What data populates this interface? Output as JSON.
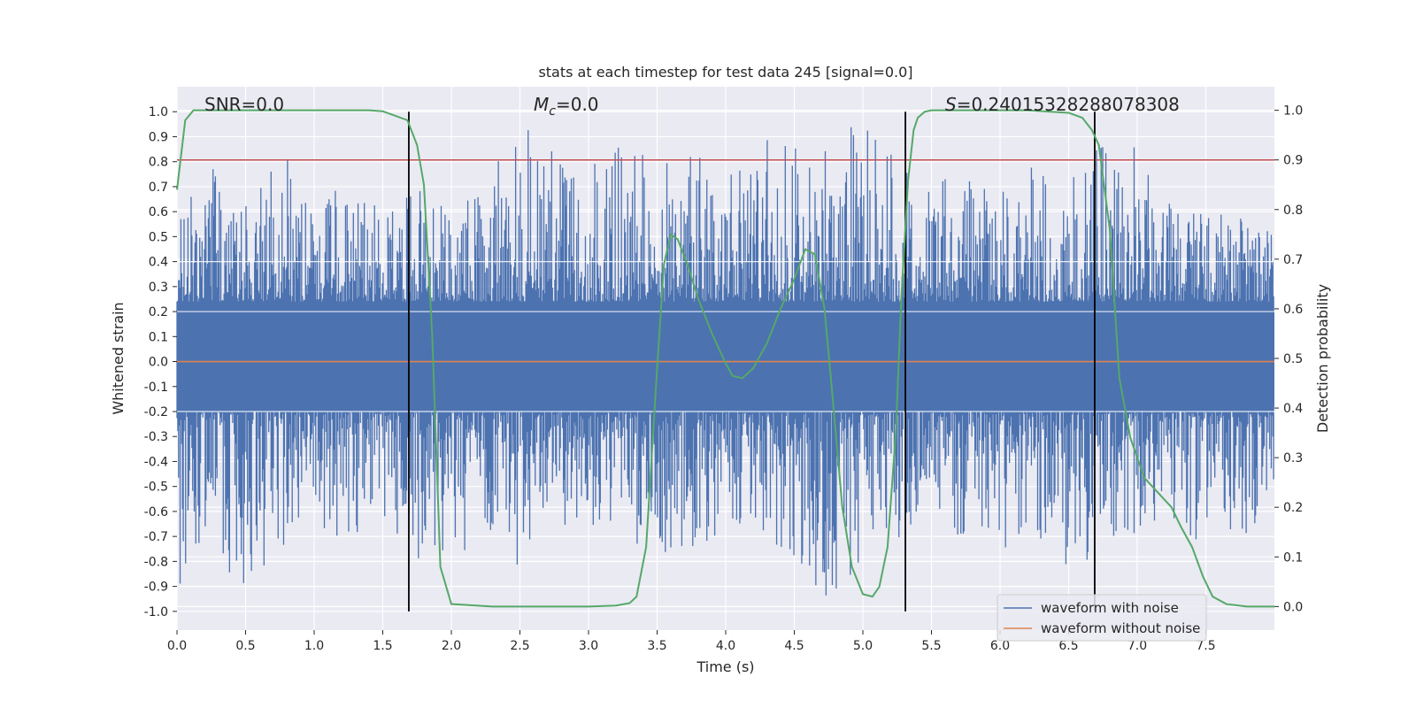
{
  "chart_data": {
    "type": "line",
    "title": "stats at each timestep for test data 245 [signal=0.0]",
    "xlabel": "Time (s)",
    "ylabel": "Whitened strain",
    "y2label": "Detection probability",
    "xlim": [
      0.0,
      8.0
    ],
    "ylim": [
      -1.075,
      1.1
    ],
    "y2lim": [
      -0.0475,
      1.0475
    ],
    "grid": true,
    "x_ticks": [
      "0.0",
      "0.5",
      "1.0",
      "1.5",
      "2.0",
      "2.5",
      "3.0",
      "3.5",
      "4.0",
      "4.5",
      "5.0",
      "5.5",
      "6.0",
      "6.5",
      "7.0",
      "7.5"
    ],
    "y_ticks": [
      "1.0",
      "0.9",
      "0.8",
      "0.7",
      "0.6",
      "0.5",
      "0.4",
      "0.3",
      "0.2",
      "0.1",
      "0.0",
      "-0.1",
      "-0.2",
      "-0.3",
      "-0.4",
      "-0.5",
      "-0.6",
      "-0.7",
      "-0.8",
      "-0.9",
      "-1.0"
    ],
    "y2_ticks": [
      "1.0",
      "0.9",
      "0.8",
      "0.7",
      "0.6",
      "0.5",
      "0.4",
      "0.3",
      "0.2",
      "0.1",
      "0.0"
    ],
    "annotations": {
      "snr": "SNR=0.0",
      "mc_symbol": "M",
      "mc_sub": "c",
      "mc_value": "=0.0",
      "s_symbol": "S",
      "s_value": "=0.24015328288078308"
    },
    "threshold": {
      "y2": 0.9,
      "color": "#c44e52"
    },
    "vertical_markers_x": [
      1.69,
      5.31,
      6.69
    ],
    "noise_envelope": {
      "x": [
        0.0,
        0.25,
        0.5,
        0.75,
        1.0,
        1.25,
        1.5,
        1.75,
        2.0,
        2.25,
        2.5,
        2.75,
        3.0,
        3.25,
        3.5,
        3.75,
        4.0,
        4.25,
        4.5,
        4.75,
        5.0,
        5.25,
        5.5,
        5.75,
        6.0,
        6.25,
        6.5,
        6.75,
        7.0,
        7.25,
        7.5,
        7.75,
        8.0
      ],
      "upper": [
        0.58,
        0.78,
        0.62,
        0.86,
        0.65,
        0.75,
        0.6,
        0.7,
        0.6,
        0.76,
        0.95,
        0.85,
        0.8,
        0.88,
        0.8,
        0.82,
        0.83,
        0.9,
        0.85,
        0.92,
        0.95,
        0.88,
        0.72,
        0.78,
        0.7,
        0.8,
        0.72,
        0.88,
        0.88,
        0.62,
        0.6,
        0.58,
        0.62
      ],
      "lower": [
        -0.9,
        -0.78,
        -0.92,
        -0.8,
        -0.68,
        -0.72,
        -0.62,
        -0.8,
        -0.84,
        -0.72,
        -0.86,
        -0.78,
        -0.7,
        -0.72,
        -0.88,
        -0.75,
        -0.7,
        -0.68,
        -0.8,
        -0.98,
        -0.8,
        -0.72,
        -0.65,
        -0.72,
        -0.78,
        -0.72,
        -0.82,
        -0.78,
        -0.72,
        -0.7,
        -0.75,
        -0.72,
        -0.7
      ]
    },
    "series": [
      {
        "name": "waveform with noise",
        "color": "#4c72b0",
        "axis": "left"
      },
      {
        "name": "waveform without noise",
        "color": "#dd8452",
        "axis": "left",
        "x": [
          0.0,
          8.0
        ],
        "y": [
          0.0,
          0.0
        ]
      },
      {
        "name": "detection probability",
        "color": "#55a868",
        "axis": "right",
        "x": [
          0.0,
          0.06,
          0.12,
          0.25,
          0.5,
          1.0,
          1.4,
          1.5,
          1.58,
          1.68,
          1.75,
          1.8,
          1.86,
          1.92,
          2.0,
          2.3,
          2.7,
          3.0,
          3.2,
          3.3,
          3.35,
          3.42,
          3.5,
          3.55,
          3.6,
          3.65,
          3.72,
          3.8,
          3.9,
          4.0,
          4.05,
          4.12,
          4.2,
          4.3,
          4.4,
          4.5,
          4.58,
          4.65,
          4.72,
          4.78,
          4.85,
          4.92,
          5.0,
          5.07,
          5.12,
          5.18,
          5.24,
          5.28,
          5.33,
          5.37,
          5.4,
          5.45,
          5.5,
          5.6,
          5.8,
          6.2,
          6.5,
          6.6,
          6.67,
          6.72,
          6.8,
          6.87,
          6.95,
          7.05,
          7.15,
          7.25,
          7.32,
          7.4,
          7.48,
          7.55,
          7.65,
          7.8,
          8.0
        ],
        "y": [
          0.84,
          0.98,
          1.0,
          1.0,
          1.0,
          1.0,
          1.0,
          0.998,
          0.99,
          0.98,
          0.93,
          0.85,
          0.55,
          0.08,
          0.005,
          0.0,
          0.0,
          0.0,
          0.002,
          0.007,
          0.02,
          0.12,
          0.48,
          0.69,
          0.75,
          0.74,
          0.69,
          0.62,
          0.55,
          0.49,
          0.465,
          0.46,
          0.48,
          0.53,
          0.6,
          0.66,
          0.72,
          0.71,
          0.6,
          0.42,
          0.2,
          0.08,
          0.025,
          0.02,
          0.04,
          0.12,
          0.35,
          0.62,
          0.86,
          0.96,
          0.985,
          0.997,
          1.0,
          1.0,
          1.0,
          1.0,
          0.995,
          0.985,
          0.96,
          0.93,
          0.76,
          0.46,
          0.34,
          0.26,
          0.23,
          0.2,
          0.16,
          0.12,
          0.06,
          0.02,
          0.005,
          0.0,
          0.0
        ]
      }
    ],
    "legend": {
      "placement": "lower-right",
      "entries": [
        "waveform with noise",
        "waveform without noise"
      ]
    }
  }
}
